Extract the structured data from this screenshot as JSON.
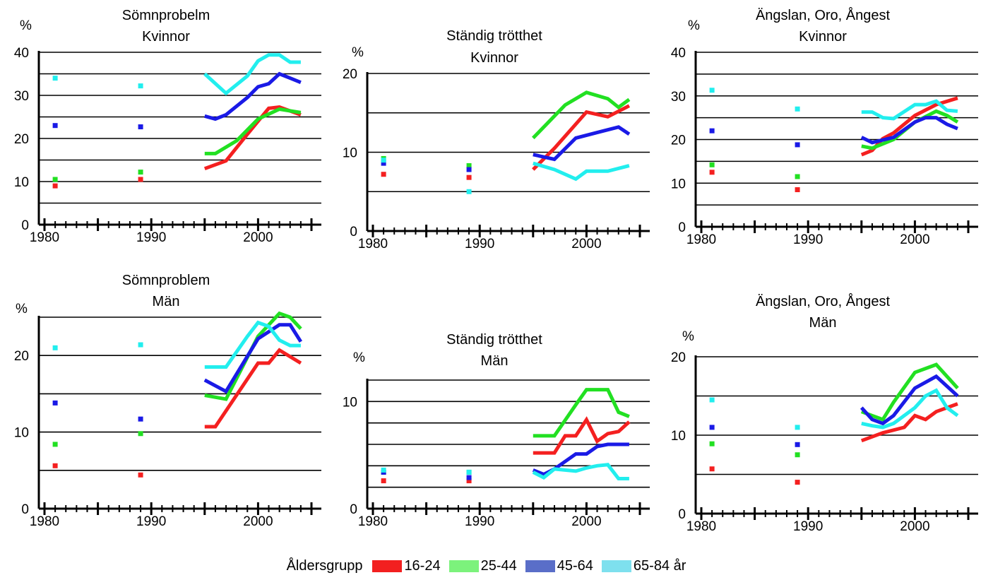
{
  "legend": {
    "title": "Åldersgrupp",
    "items": [
      {
        "label": "16-24",
        "color": "#f22020"
      },
      {
        "label": "25-44",
        "color": "#7cf27c"
      },
      {
        "label": "45-64",
        "color": "#5a6ec8"
      },
      {
        "label": "65-84 år",
        "color": "#7ee0ee"
      }
    ]
  },
  "series_colors": {
    "16-24": "#f42020",
    "25-44": "#22e022",
    "45-64": "#1a1ae6",
    "65-84": "#22eeee"
  },
  "chart_data": [
    {
      "type": "line",
      "title": [
        "Sömnprobelm",
        "Kvinnor"
      ],
      "ylabel": "%",
      "xlim": [
        1980,
        2005
      ],
      "ylim": [
        0,
        40
      ],
      "yticks": [
        0,
        10,
        20,
        30,
        40
      ],
      "ygrid": [
        5,
        10,
        15,
        20,
        25,
        30,
        35,
        40
      ],
      "xticks": [
        1980,
        1990,
        2000
      ],
      "points": {
        "16-24": [
          [
            1981,
            9
          ],
          [
            1989,
            10.5
          ]
        ],
        "25-44": [
          [
            1981,
            10.5
          ],
          [
            1989,
            12.2
          ]
        ],
        "45-64": [
          [
            1981,
            23
          ],
          [
            1989,
            22.7
          ]
        ],
        "65-84": [
          [
            1981,
            34
          ],
          [
            1989,
            32.2
          ]
        ]
      },
      "series": [
        {
          "group": "16-24",
          "x": [
            1995,
            1997,
            1999,
            2001,
            2002,
            2004
          ],
          "y": [
            13,
            14.8,
            21,
            27,
            27.3,
            25.5
          ]
        },
        {
          "group": "25-44",
          "x": [
            1995,
            1996,
            1998,
            2000,
            2002,
            2004
          ],
          "y": [
            16.5,
            16.5,
            19.5,
            24.5,
            26.8,
            26
          ]
        },
        {
          "group": "45-64",
          "x": [
            1995,
            1996,
            1997,
            1999,
            2000,
            2001,
            2002,
            2003,
            2004
          ],
          "y": [
            25.2,
            24.5,
            25.5,
            29.5,
            32,
            32.7,
            35,
            34,
            33
          ]
        },
        {
          "group": "65-84",
          "x": [
            1995,
            1997,
            1999,
            2000,
            2001,
            2002,
            2003,
            2004
          ],
          "y": [
            35,
            30.5,
            34.5,
            38,
            39.4,
            39.4,
            37.7,
            37.7
          ]
        }
      ]
    },
    {
      "type": "line",
      "title": [
        "Ständig trötthet",
        "Kvinnor"
      ],
      "ylabel": "%",
      "xlim": [
        1980,
        2005
      ],
      "ylim": [
        0,
        20
      ],
      "yticks": [
        0,
        10,
        20
      ],
      "ygrid": [
        5,
        10,
        15,
        20
      ],
      "xticks": [
        1980,
        1990,
        2000
      ],
      "points": {
        "16-24": [
          [
            1981,
            7.2
          ],
          [
            1989,
            6.8
          ]
        ],
        "25-44": [
          [
            1981,
            9.2
          ],
          [
            1989,
            8.3
          ]
        ],
        "45-64": [
          [
            1981,
            8.6
          ],
          [
            1989,
            7.8
          ]
        ],
        "65-84": [
          [
            1981,
            9
          ],
          [
            1989,
            5
          ]
        ]
      },
      "series": [
        {
          "group": "16-24",
          "x": [
            1995,
            1997,
            2000,
            2002,
            2004
          ],
          "y": [
            7.8,
            10.5,
            15.1,
            14.5,
            15.9
          ]
        },
        {
          "group": "25-44",
          "x": [
            1995,
            1998,
            2000,
            2002,
            2003,
            2004
          ],
          "y": [
            11.8,
            16,
            17.6,
            16.8,
            15.7,
            16.7
          ]
        },
        {
          "group": "45-64",
          "x": [
            1995,
            1997,
            1999,
            2001,
            2003,
            2004
          ],
          "y": [
            9.7,
            9.1,
            11.8,
            12.5,
            13.2,
            12.3
          ]
        },
        {
          "group": "65-84",
          "x": [
            1995,
            1997,
            1999,
            2000,
            2002,
            2004
          ],
          "y": [
            8.6,
            7.8,
            6.6,
            7.6,
            7.6,
            8.3
          ]
        }
      ]
    },
    {
      "type": "line",
      "title": [
        "Ängslan, Oro, Ångest",
        "Kvinnor"
      ],
      "ylabel": "%",
      "xlim": [
        1980,
        2005
      ],
      "ylim": [
        0,
        40
      ],
      "yticks": [
        0,
        10,
        20,
        30,
        40
      ],
      "ygrid": [
        5,
        10,
        15,
        20,
        25,
        30,
        35,
        40
      ],
      "xticks": [
        1980,
        1990,
        2000
      ],
      "points": {
        "16-24": [
          [
            1981,
            12.5
          ],
          [
            1989,
            8.5
          ]
        ],
        "25-44": [
          [
            1981,
            14.2
          ],
          [
            1989,
            11.5
          ]
        ],
        "45-64": [
          [
            1981,
            22
          ],
          [
            1989,
            18.8
          ]
        ],
        "65-84": [
          [
            1981,
            31.3
          ],
          [
            1989,
            27
          ]
        ]
      },
      "series": [
        {
          "group": "16-24",
          "x": [
            1995,
            1996,
            1997,
            1998,
            2000,
            2002,
            2004
          ],
          "y": [
            16.5,
            17.5,
            20.2,
            21.5,
            25.5,
            28,
            29.5
          ]
        },
        {
          "group": "25-44",
          "x": [
            1995,
            1996,
            1998,
            2000,
            2002,
            2003,
            2004
          ],
          "y": [
            18.5,
            18,
            20,
            24,
            26.5,
            25.5,
            24
          ]
        },
        {
          "group": "45-64",
          "x": [
            1995,
            1996,
            1998,
            2000,
            2001,
            2002,
            2003,
            2004
          ],
          "y": [
            20.5,
            19.3,
            20.5,
            24,
            25,
            25,
            23.5,
            22.5
          ]
        },
        {
          "group": "65-84",
          "x": [
            1995,
            1996,
            1997,
            1998,
            2000,
            2001,
            2002,
            2003,
            2004
          ],
          "y": [
            26.3,
            26.3,
            25,
            24.8,
            28,
            28,
            28.8,
            26.7,
            26.5
          ]
        }
      ]
    },
    {
      "type": "line",
      "title": [
        "Sömnproblem",
        "Män"
      ],
      "ylabel": "%",
      "xlim": [
        1980,
        2005
      ],
      "ylim": [
        0,
        25
      ],
      "yticks": [
        0,
        10,
        20
      ],
      "ygrid": [
        5,
        10,
        15,
        20,
        25
      ],
      "xticks": [
        1980,
        1990,
        2000
      ],
      "points": {
        "16-24": [
          [
            1981,
            5.6
          ],
          [
            1989,
            4.4
          ]
        ],
        "25-44": [
          [
            1981,
            8.4
          ],
          [
            1989,
            9.8
          ]
        ],
        "45-64": [
          [
            1981,
            13.8
          ],
          [
            1989,
            11.7
          ]
        ],
        "65-84": [
          [
            1981,
            21
          ],
          [
            1989,
            21.4
          ]
        ]
      },
      "series": [
        {
          "group": "16-24",
          "x": [
            1995,
            1996,
            2000,
            2001,
            2002,
            2004
          ],
          "y": [
            10.7,
            10.7,
            19,
            19,
            20.7,
            19
          ]
        },
        {
          "group": "25-44",
          "x": [
            1995,
            1997,
            2000,
            2002,
            2003,
            2004
          ],
          "y": [
            14.8,
            14.3,
            22.5,
            25.5,
            25,
            23.5
          ]
        },
        {
          "group": "45-64",
          "x": [
            1995,
            1997,
            2000,
            2002,
            2003,
            2004
          ],
          "y": [
            16.8,
            15.3,
            22.2,
            24,
            24,
            21.8
          ]
        },
        {
          "group": "65-84",
          "x": [
            1995,
            1997,
            1999,
            2000,
            2001,
            2002,
            2003,
            2004
          ],
          "y": [
            18.5,
            18.5,
            22.5,
            24.3,
            23.8,
            22,
            21.3,
            21.3
          ]
        }
      ]
    },
    {
      "type": "line",
      "title": [
        "Ständig trötthet",
        "Män"
      ],
      "ylabel": "%",
      "xlim": [
        1980,
        2005
      ],
      "ylim": [
        0,
        12
      ],
      "yticks": [
        0,
        10
      ],
      "ygrid": [
        2,
        4,
        6,
        8,
        10,
        12
      ],
      "xticks": [
        1980,
        1990,
        2000
      ],
      "points": {
        "16-24": [
          [
            1981,
            2.6
          ],
          [
            1989,
            2.6
          ]
        ],
        "25-44": [
          [
            1981,
            3.4
          ],
          [
            1989,
            3.4
          ]
        ],
        "45-64": [
          [
            1981,
            3.4
          ],
          [
            1989,
            2.9
          ]
        ],
        "65-84": [
          [
            1981,
            3.6
          ],
          [
            1989,
            3.4
          ]
        ]
      },
      "series": [
        {
          "group": "16-24",
          "x": [
            1995,
            1997,
            1998,
            1999,
            2000,
            2001,
            2002,
            2003,
            2004
          ],
          "y": [
            5.2,
            5.2,
            6.8,
            6.8,
            8.3,
            6.3,
            7,
            7.2,
            8.1
          ]
        },
        {
          "group": "25-44",
          "x": [
            1995,
            1997,
            1999,
            2000,
            2001,
            2002,
            2003,
            2004
          ],
          "y": [
            6.8,
            6.8,
            9.7,
            11.1,
            11.1,
            11.1,
            9,
            8.6
          ]
        },
        {
          "group": "45-64",
          "x": [
            1995,
            1996,
            1997,
            1999,
            2000,
            2001,
            2002,
            2003,
            2004
          ],
          "y": [
            3.6,
            3.2,
            3.7,
            5.1,
            5.1,
            5.8,
            6,
            6,
            6
          ]
        },
        {
          "group": "65-84",
          "x": [
            1995,
            1996,
            1997,
            1999,
            2000,
            2001,
            2002,
            2003,
            2004
          ],
          "y": [
            3.4,
            2.9,
            3.7,
            3.5,
            3.8,
            4,
            4.1,
            2.8,
            2.8
          ]
        }
      ]
    },
    {
      "type": "line",
      "title": [
        "Ängslan, Oro, Ångest",
        "Män"
      ],
      "ylabel": "%",
      "xlim": [
        1980,
        2005
      ],
      "ylim": [
        0,
        20
      ],
      "yticks": [
        0,
        10,
        20
      ],
      "ygrid": [
        5,
        10,
        15,
        20
      ],
      "xticks": [
        1980,
        1990,
        2000
      ],
      "points": {
        "16-24": [
          [
            1981,
            5.7
          ],
          [
            1989,
            4
          ]
        ],
        "25-44": [
          [
            1981,
            8.9
          ],
          [
            1989,
            7.5
          ]
        ],
        "45-64": [
          [
            1981,
            11
          ],
          [
            1989,
            8.8
          ]
        ],
        "65-84": [
          [
            1981,
            14.5
          ],
          [
            1989,
            11
          ]
        ]
      },
      "series": [
        {
          "group": "16-24",
          "x": [
            1995,
            1997,
            1999,
            2000,
            2001,
            2002,
            2004
          ],
          "y": [
            9.3,
            10.3,
            11,
            12.5,
            12,
            13,
            14
          ]
        },
        {
          "group": "25-44",
          "x": [
            1995,
            1996,
            1997,
            1998,
            2000,
            2002,
            2004
          ],
          "y": [
            13,
            12.5,
            12,
            14.2,
            18,
            19,
            16
          ]
        },
        {
          "group": "45-64",
          "x": [
            1995,
            1996,
            1997,
            1998,
            2000,
            2002,
            2004
          ],
          "y": [
            13.5,
            12,
            11.5,
            12.5,
            16,
            17.5,
            15
          ]
        },
        {
          "group": "65-84",
          "x": [
            1995,
            1996,
            1997,
            1998,
            2000,
            2001,
            2002,
            2003,
            2004
          ],
          "y": [
            11.5,
            11.2,
            11,
            11.5,
            13.5,
            15,
            15.7,
            13.5,
            12.5
          ]
        }
      ]
    }
  ]
}
